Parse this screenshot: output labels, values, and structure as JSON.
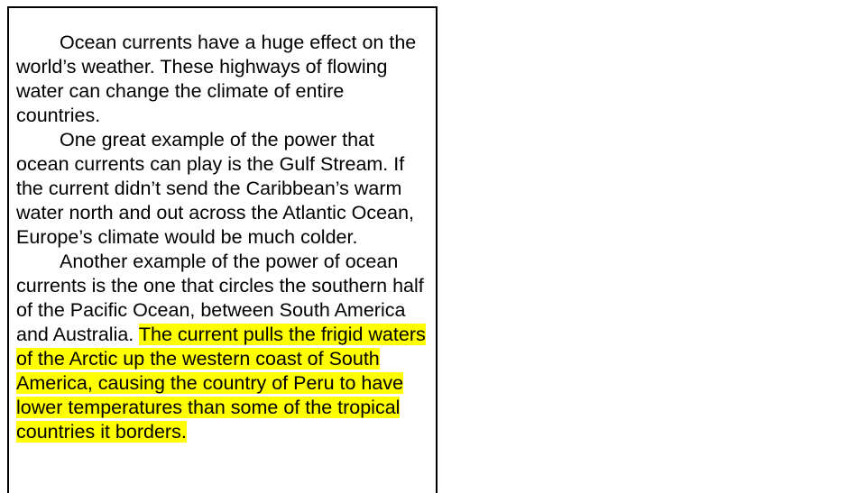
{
  "document": {
    "paragraphs": [
      {
        "text": "Ocean currents have a huge effect on the world’s weather.  These highways of flowing water can change the climate of entire countries."
      },
      {
        "text": "One great example of the power that ocean currents can play is the Gulf Stream.  If the current didn’t send the Caribbean’s warm water north and out across the Atlantic Ocean, Europe’s climate would be much colder."
      },
      {
        "text": "Another example of the power of ocean currents is the one that circles the southern half of the Pacific Ocean, between South America and Australia. ",
        "highlight": "The current pulls the frigid waters of the Arctic up the western coast of South America, causing the country of Peru to have lower temperatures than some of the tropical countries it borders."
      }
    ],
    "highlight_color": "#ffff00"
  }
}
